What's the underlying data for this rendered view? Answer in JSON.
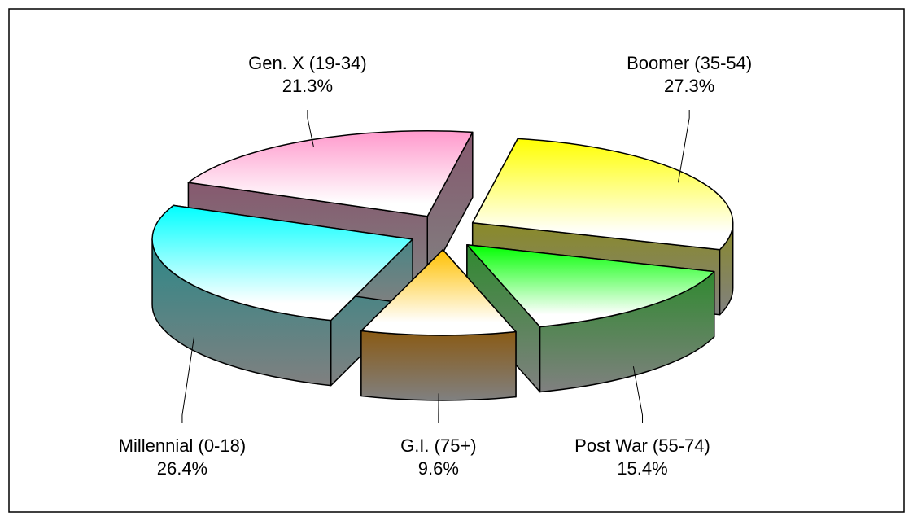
{
  "chart_data": {
    "type": "pie3d",
    "categories": [
      "Boomer (35-54)",
      "Post War (55-74)",
      "G.I. (75+)",
      "Millennial (0-18)",
      "Gen. X (19-34)"
    ],
    "values": [
      27.3,
      15.4,
      9.6,
      26.4,
      21.3
    ],
    "value_labels": [
      "27.3%",
      "15.4%",
      "9.6%",
      "26.4%",
      "21.3%"
    ],
    "colors": [
      "#ffff00",
      "#00ff00",
      "#ffc000",
      "#00ffff",
      "#ff99cc"
    ],
    "side_colors": [
      "#8a8a28",
      "#2f8a2f",
      "#8a5a14",
      "#2a8888",
      "#86586e"
    ]
  }
}
